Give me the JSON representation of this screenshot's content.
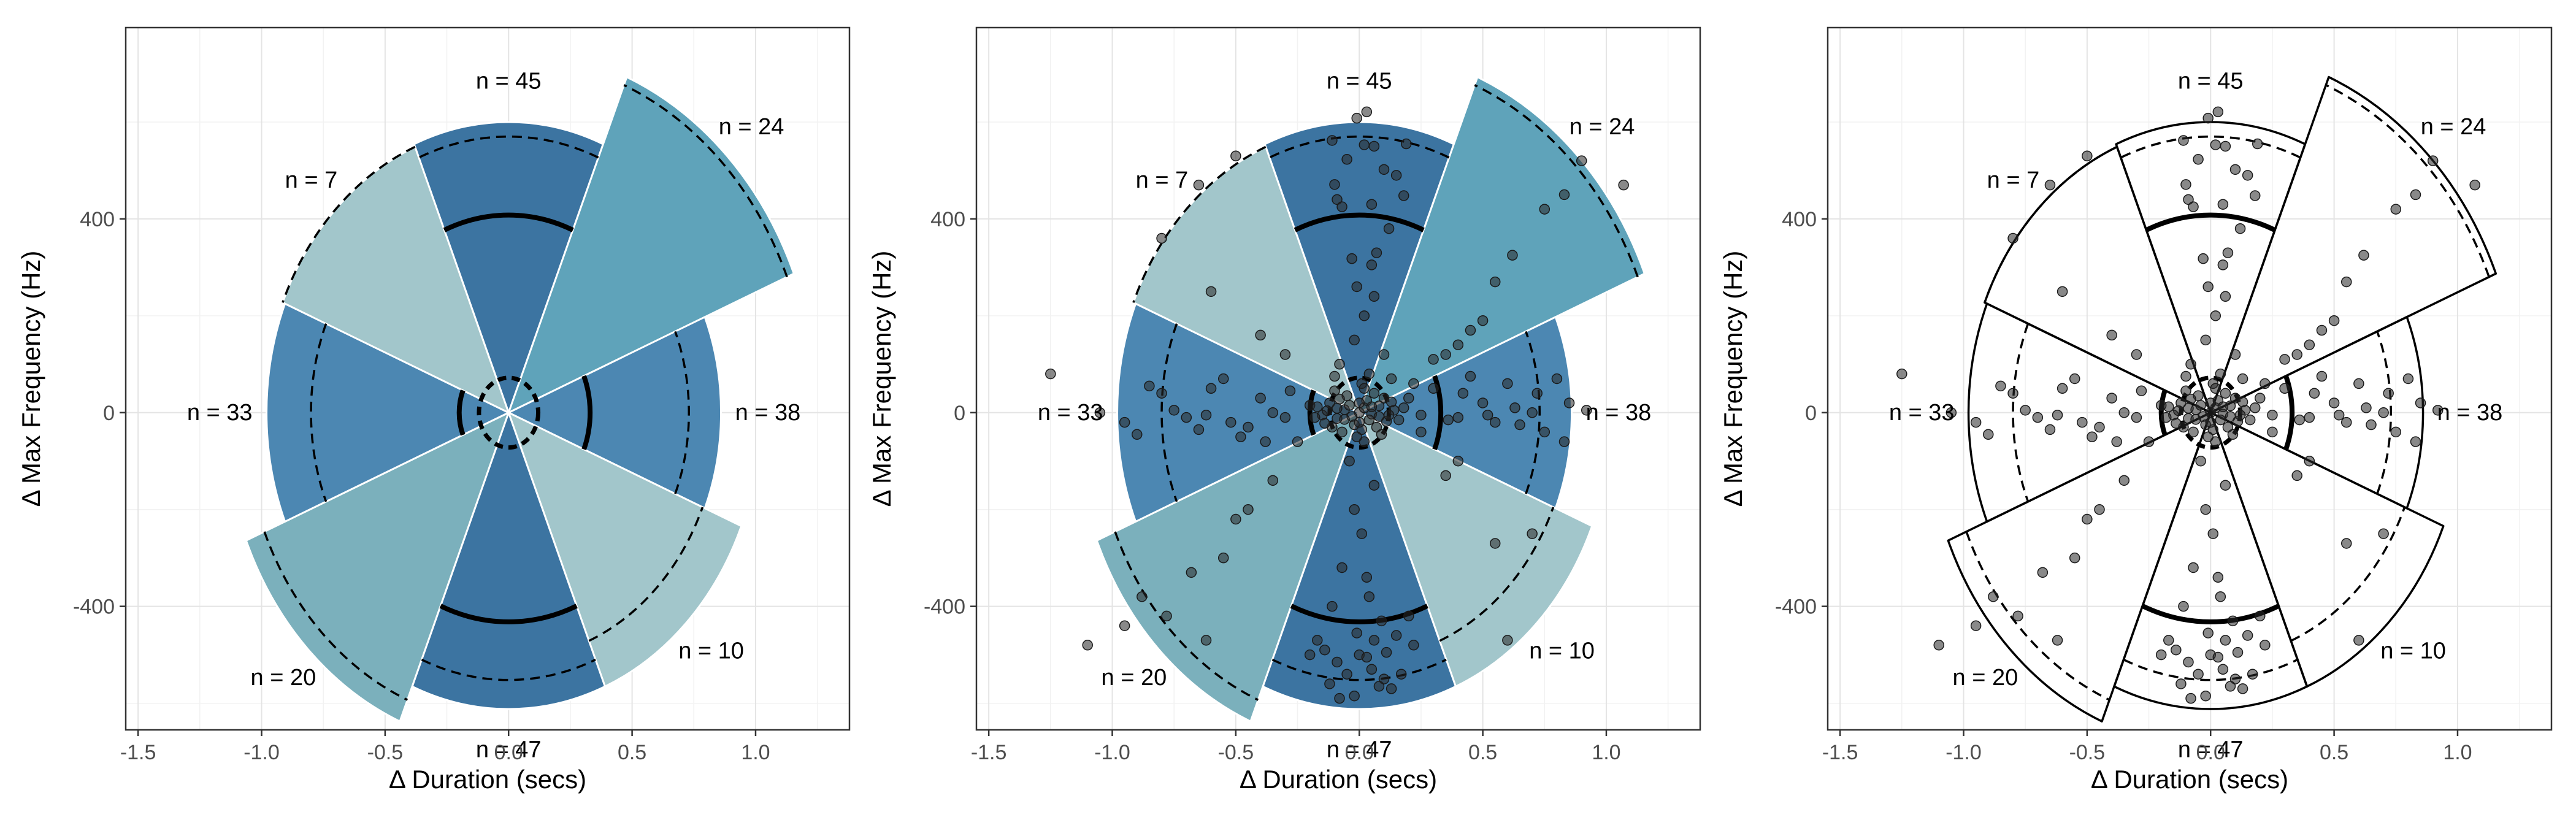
{
  "chart_data": [
    {
      "type": "scatter",
      "panel": "sector-fill",
      "xlabel": "Δ Duration (secs)",
      "ylabel": "Δ Max Frequency (Hz)",
      "xlim": [
        -1.55,
        1.38
      ],
      "ylim": [
        -655,
        795
      ],
      "xticks": [
        -1.5,
        -1.0,
        -0.5,
        0.0,
        0.5,
        1.0
      ],
      "xtick_labels": [
        "-1.5",
        "-1.0",
        "-0.5",
        "0.0",
        "0.5",
        "1.0"
      ],
      "yticks": [
        -400,
        0,
        400
      ],
      "ytick_labels": [
        "-400",
        "0",
        "400"
      ],
      "grid": true,
      "points": false,
      "filled": true
    },
    {
      "type": "scatter",
      "panel": "sector-fill-points",
      "xlabel": "Δ Duration (secs)",
      "ylabel": "Δ Max Frequency (Hz)",
      "xlim": [
        -1.55,
        1.38
      ],
      "ylim": [
        -655,
        795
      ],
      "xticks": [
        -1.5,
        -1.0,
        -0.5,
        0.0,
        0.5,
        1.0
      ],
      "xtick_labels": [
        "-1.5",
        "-1.0",
        "-0.5",
        "0.0",
        "0.5",
        "1.0"
      ],
      "yticks": [
        -400,
        0,
        400
      ],
      "ytick_labels": [
        "-400",
        "0",
        "400"
      ],
      "grid": true,
      "points": true,
      "filled": true
    },
    {
      "type": "scatter",
      "panel": "sector-outline-points",
      "xlabel": "Δ Duration (secs)",
      "ylabel": "Δ Max Frequency (Hz)",
      "xlim": [
        -1.55,
        1.38
      ],
      "ylim": [
        -655,
        795
      ],
      "xticks": [
        -1.5,
        -1.0,
        -0.5,
        0.0,
        0.5,
        1.0
      ],
      "xtick_labels": [
        "-1.5",
        "-1.0",
        "-0.5",
        "0.0",
        "0.5",
        "1.0"
      ],
      "yticks": [
        -400,
        0,
        400
      ],
      "ytick_labels": [
        "-400",
        "0",
        "400"
      ],
      "grid": true,
      "points": true,
      "filled": false
    }
  ],
  "sectors": [
    {
      "label": "n = 45",
      "n": 45,
      "angle_deg": 90,
      "radius": 1.0,
      "dashed_radius": 0.95,
      "solid_arc_radius": 0.68,
      "color": "#3c74a1"
    },
    {
      "label": "n = 24",
      "n": 24,
      "angle_deg": 45,
      "radius": 1.25,
      "dashed_radius": 1.22,
      "color": "#5fa3ba"
    },
    {
      "label": "n = 38",
      "n": 38,
      "angle_deg": 0,
      "radius": 0.86,
      "dashed_radius": 0.73,
      "solid_arc_radius": 0.33,
      "color": "#4c87b2"
    },
    {
      "label": "n = 10",
      "n": 10,
      "angle_deg": -45,
      "radius": 1.02,
      "dashed_radius": 0.85,
      "color": "#a2c6cb"
    },
    {
      "label": "n = 47",
      "n": 47,
      "angle_deg": -90,
      "radius": 1.02,
      "dashed_radius": 0.92,
      "solid_arc_radius": 0.72,
      "color": "#3c74a1"
    },
    {
      "label": "n = 20",
      "n": 20,
      "angle_deg": -135,
      "radius": 1.15,
      "dashed_radius": 1.07,
      "color": "#7bb0bc"
    },
    {
      "label": "n = 33",
      "n": 33,
      "angle_deg": 180,
      "radius": 0.98,
      "dashed_radius": 0.8,
      "solid_arc_radius": 0.2,
      "color": "#4c87b2"
    },
    {
      "label": "n = 7",
      "n": 7,
      "angle_deg": 135,
      "radius": 0.99,
      "dashed_radius": 0.99,
      "color": "#a2c6cb"
    }
  ],
  "points": [
    [
      -0.01,
      608
    ],
    [
      0.03,
      621
    ],
    [
      -0.11,
      562
    ],
    [
      0.02,
      553
    ],
    [
      0.06,
      550
    ],
    [
      -0.05,
      523
    ],
    [
      0.1,
      502
    ],
    [
      -0.1,
      471
    ],
    [
      0.15,
      490
    ],
    [
      0.19,
      555
    ],
    [
      -0.09,
      440
    ],
    [
      0.18,
      448
    ],
    [
      0.05,
      430
    ],
    [
      -0.07,
      425
    ],
    [
      0.12,
      380
    ],
    [
      0.07,
      330
    ],
    [
      -0.03,
      318
    ],
    [
      0.05,
      305
    ],
    [
      -0.01,
      260
    ],
    [
      0.06,
      240
    ],
    [
      0.02,
      200
    ],
    [
      -0.02,
      150
    ],
    [
      0.1,
      120
    ],
    [
      -0.08,
      100
    ],
    [
      0.04,
      80
    ],
    [
      0.01,
      60
    ],
    [
      -0.1,
      75
    ],
    [
      0.13,
      70
    ],
    [
      0.02,
      -60
    ],
    [
      -0.04,
      -100
    ],
    [
      0.06,
      -150
    ],
    [
      -0.02,
      -200
    ],
    [
      0.01,
      -250
    ],
    [
      -0.07,
      -320
    ],
    [
      0.03,
      -340
    ],
    [
      0.04,
      -380
    ],
    [
      -0.11,
      -400
    ],
    [
      0.09,
      -430
    ],
    [
      0.15,
      -460
    ],
    [
      -0.17,
      -470
    ],
    [
      0.0,
      -500
    ],
    [
      0.05,
      -530
    ],
    [
      -0.05,
      -540
    ],
    [
      0.1,
      -550
    ],
    [
      -0.12,
      -560
    ],
    [
      0.13,
      -570
    ],
    [
      -0.02,
      -585
    ],
    [
      0.08,
      -565
    ],
    [
      -0.08,
      -590
    ],
    [
      0.17,
      -540
    ],
    [
      0.03,
      -505
    ],
    [
      -0.09,
      -515
    ],
    [
      0.11,
      -495
    ],
    [
      -0.14,
      -490
    ],
    [
      0.06,
      -470
    ],
    [
      0.2,
      -420
    ],
    [
      -0.01,
      -455
    ],
    [
      0.22,
      -480
    ],
    [
      -0.2,
      -500
    ],
    [
      0.2,
      30
    ],
    [
      0.3,
      50
    ],
    [
      0.4,
      -10
    ],
    [
      0.5,
      20
    ],
    [
      0.55,
      -20
    ],
    [
      0.63,
      10
    ],
    [
      0.72,
      40
    ],
    [
      0.75,
      -40
    ],
    [
      0.8,
      70
    ],
    [
      0.83,
      -60
    ],
    [
      0.6,
      60
    ],
    [
      0.45,
      75
    ],
    [
      0.36,
      -15
    ],
    [
      0.25,
      -5
    ],
    [
      0.65,
      -25
    ],
    [
      0.85,
      20
    ],
    [
      0.92,
      5
    ],
    [
      0.7,
      0
    ],
    [
      0.52,
      -5
    ],
    [
      0.42,
      40
    ],
    [
      -0.2,
      15
    ],
    [
      -0.3,
      -10
    ],
    [
      -0.4,
      30
    ],
    [
      -0.45,
      -30
    ],
    [
      -0.52,
      -20
    ],
    [
      -0.6,
      50
    ],
    [
      -0.65,
      -35
    ],
    [
      -0.7,
      -10
    ],
    [
      -0.75,
      5
    ],
    [
      -0.85,
      55
    ],
    [
      -0.95,
      -20
    ],
    [
      -1.05,
      0
    ],
    [
      -0.55,
      70
    ],
    [
      -0.48,
      -50
    ],
    [
      -0.38,
      -60
    ],
    [
      -0.28,
      45
    ],
    [
      -0.62,
      -5
    ],
    [
      -1.25,
      80
    ],
    [
      -0.9,
      -45
    ],
    [
      -0.8,
      40
    ],
    [
      -0.35,
      0
    ],
    [
      0.5,
      190
    ],
    [
      0.62,
      325
    ],
    [
      0.75,
      420
    ],
    [
      0.83,
      450
    ],
    [
      0.9,
      520
    ],
    [
      1.07,
      470
    ],
    [
      0.35,
      120
    ],
    [
      0.55,
      270
    ],
    [
      0.45,
      170
    ],
    [
      0.22,
      60
    ],
    [
      0.3,
      110
    ],
    [
      0.4,
      140
    ],
    [
      0.25,
      -40
    ],
    [
      0.35,
      -130
    ],
    [
      0.55,
      -270
    ],
    [
      0.6,
      -470
    ],
    [
      0.4,
      -100
    ],
    [
      0.7,
      -250
    ],
    [
      -0.25,
      -60
    ],
    [
      -0.45,
      -200
    ],
    [
      -0.55,
      -300
    ],
    [
      -0.78,
      -420
    ],
    [
      -0.62,
      -470
    ],
    [
      -1.1,
      -480
    ],
    [
      -0.95,
      -440
    ],
    [
      -0.35,
      -140
    ],
    [
      -0.5,
      -220
    ],
    [
      -0.68,
      -330
    ],
    [
      -0.88,
      -380
    ],
    [
      -0.4,
      160
    ],
    [
      -0.6,
      250
    ],
    [
      -0.8,
      360
    ],
    [
      -0.5,
      530
    ],
    [
      -0.3,
      120
    ],
    [
      -0.65,
      470
    ],
    [
      0.0,
      0
    ],
    [
      0.02,
      10
    ],
    [
      -0.03,
      -8
    ],
    [
      0.05,
      -3
    ],
    [
      -0.06,
      6
    ],
    [
      0.08,
      14
    ],
    [
      -0.09,
      -12
    ],
    [
      0.11,
      -18
    ],
    [
      -0.12,
      20
    ],
    [
      0.03,
      25
    ],
    [
      -0.02,
      -25
    ],
    [
      0.14,
      5
    ],
    [
      -0.15,
      -5
    ],
    [
      0.01,
      -35
    ],
    [
      -0.05,
      35
    ],
    [
      0.07,
      -30
    ],
    [
      -0.08,
      28
    ],
    [
      0.1,
      30
    ],
    [
      -0.11,
      -30
    ],
    [
      0.16,
      -15
    ],
    [
      -0.17,
      12
    ],
    [
      0.04,
      -15
    ],
    [
      -0.04,
      15
    ],
    [
      0.12,
      -5
    ],
    [
      -0.13,
      4
    ],
    [
      0.06,
      40
    ],
    [
      -0.07,
      -40
    ],
    [
      0.09,
      -45
    ],
    [
      -0.1,
      45
    ],
    [
      0.02,
      50
    ],
    [
      -0.01,
      -50
    ],
    [
      0.13,
      22
    ],
    [
      -0.14,
      -22
    ],
    [
      0.18,
      10
    ],
    [
      -0.18,
      -10
    ],
    [
      0.05,
      12
    ],
    [
      -0.06,
      -14
    ],
    [
      0.08,
      -8
    ],
    [
      -0.09,
      9
    ],
    [
      0.0,
      20
    ],
    [
      0.0,
      -20
    ]
  ]
}
